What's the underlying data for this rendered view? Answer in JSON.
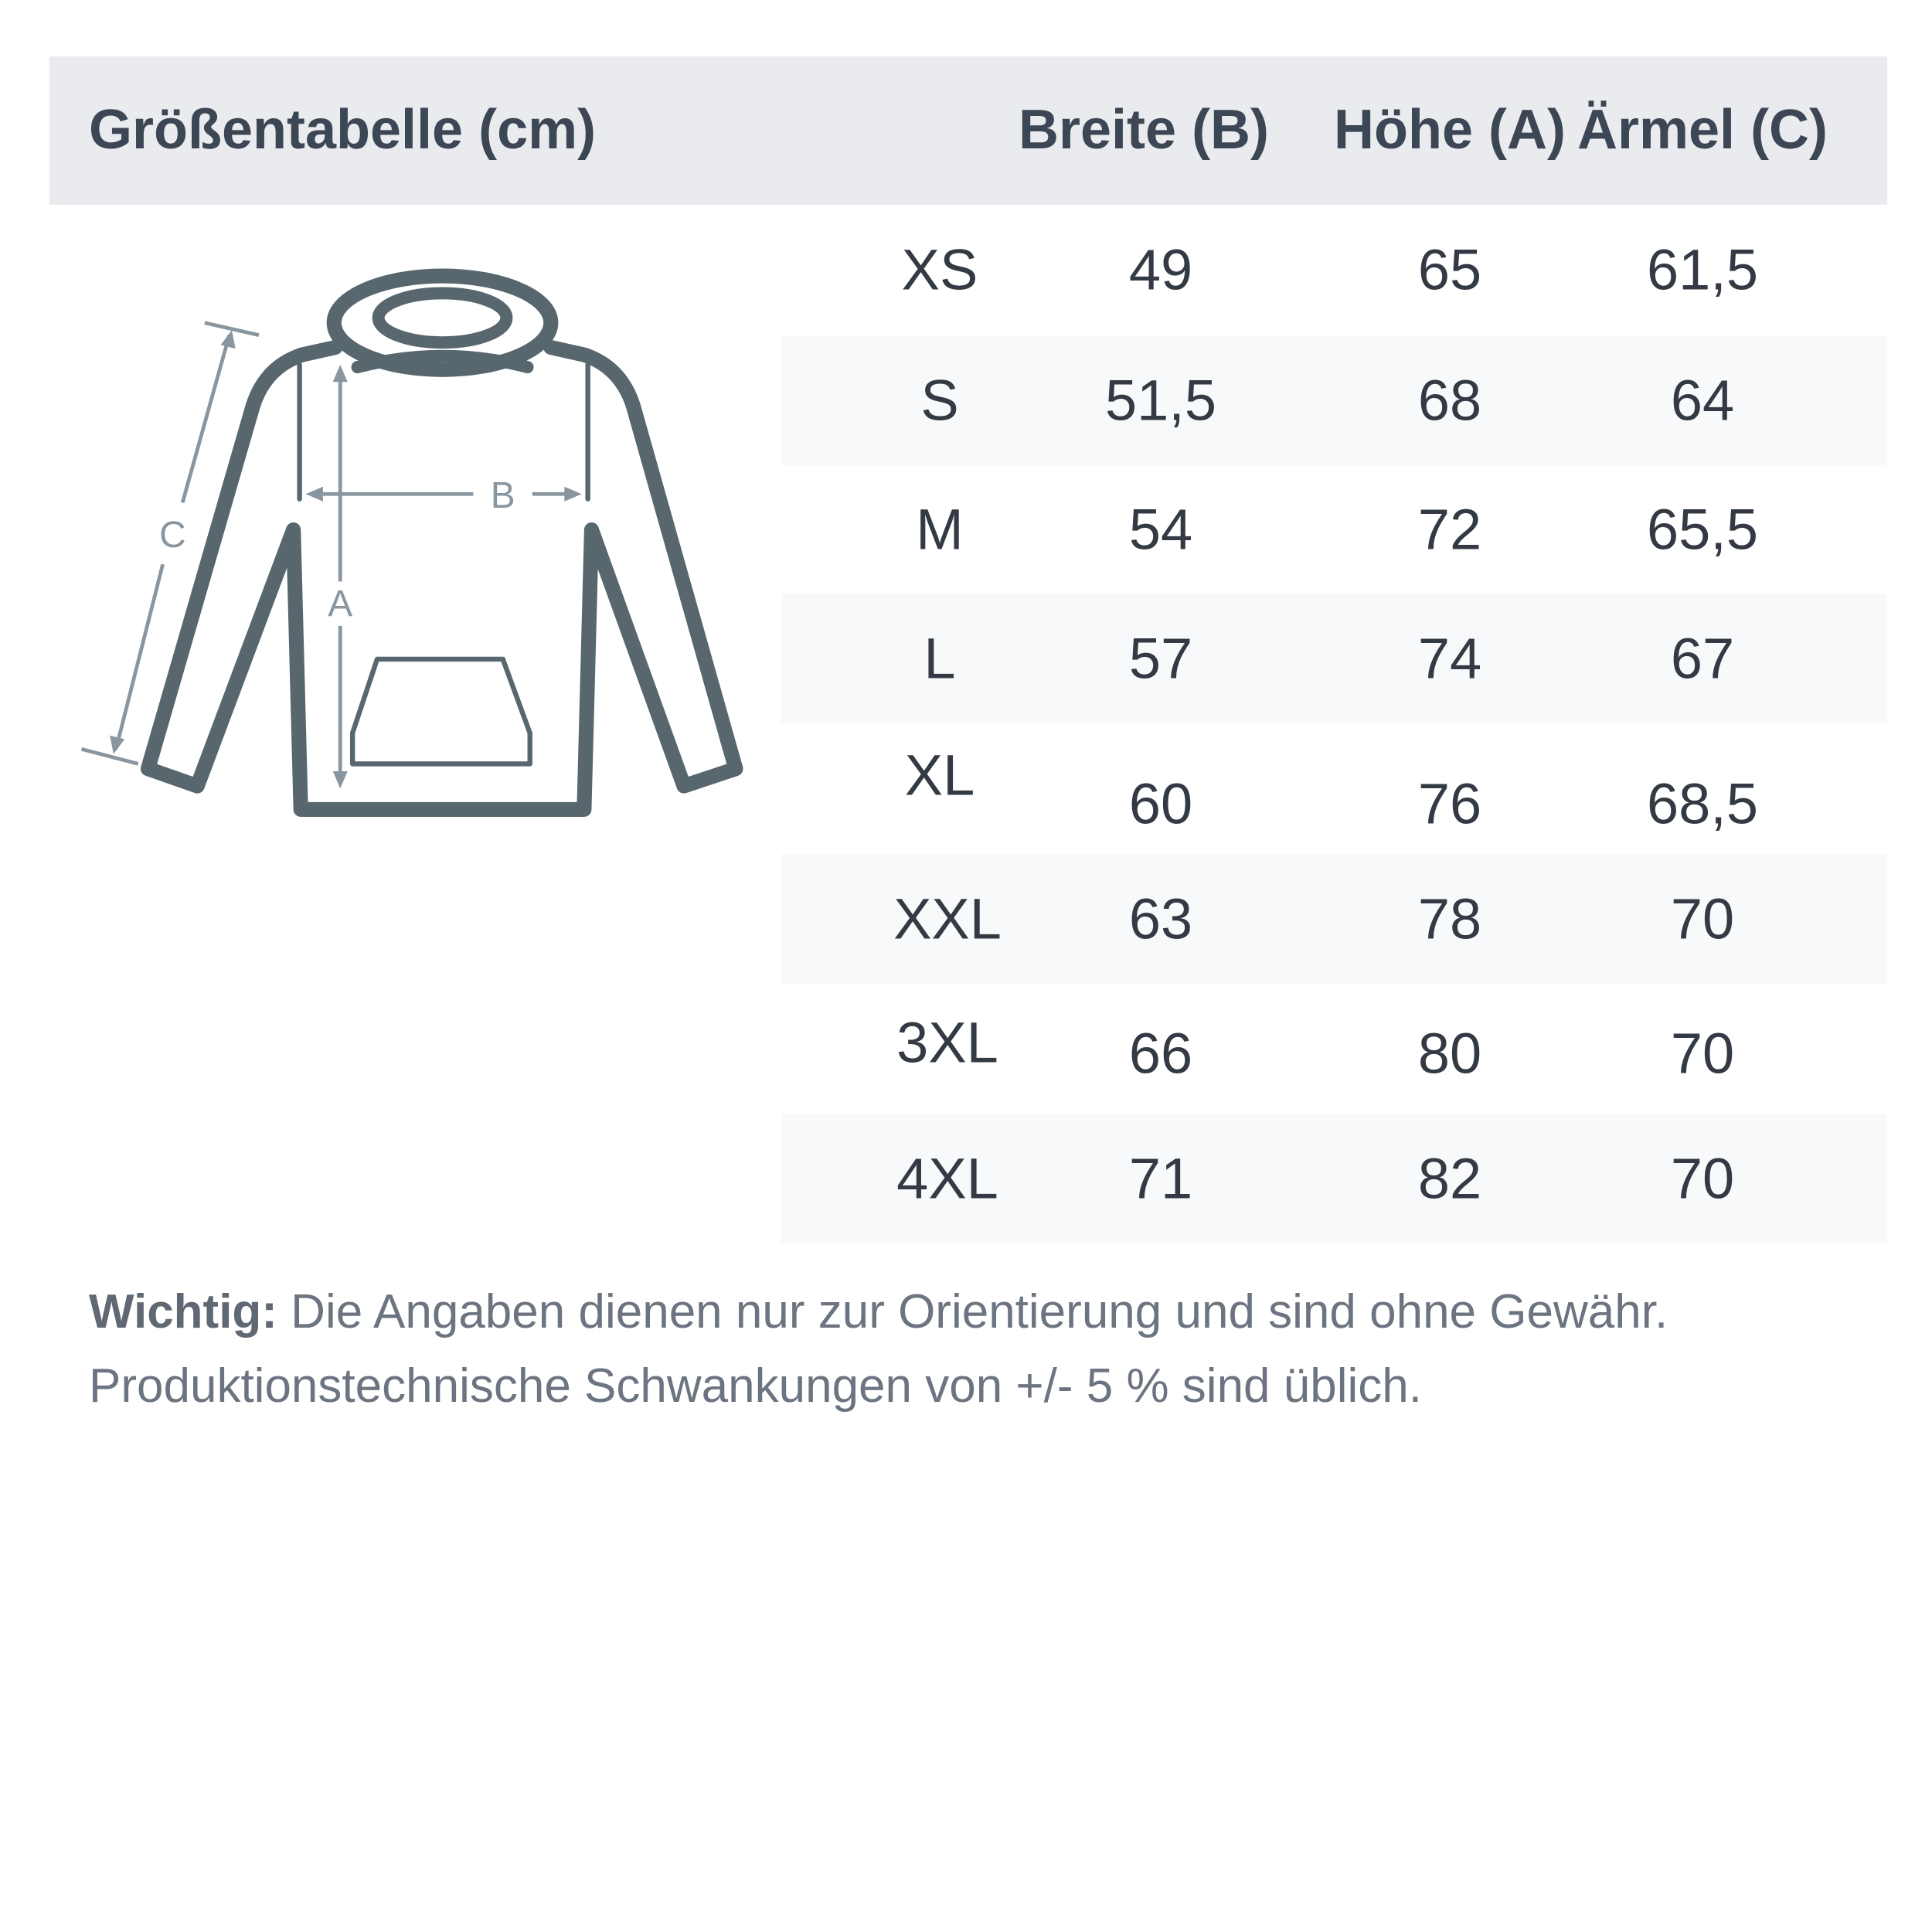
{
  "header": {
    "title": "Größentabelle (cm)",
    "columns": [
      "Breite (B)",
      "Höhe (A)",
      "Ärmel (C)"
    ]
  },
  "diagram": {
    "labels": {
      "a": "A",
      "b": "B",
      "c": "C"
    }
  },
  "table": {
    "rows": [
      {
        "size": "XS",
        "breite": "49",
        "hoehe": "65",
        "aermel": "61,5"
      },
      {
        "size": "S",
        "breite": "51,5",
        "hoehe": "68",
        "aermel": "64"
      },
      {
        "size": "M",
        "breite": "54",
        "hoehe": "72",
        "aermel": "65,5"
      },
      {
        "size": "L",
        "breite": "57",
        "hoehe": "74",
        "aermel": "67"
      },
      {
        "size": "XL",
        "breite": "60",
        "hoehe": "76",
        "aermel": "68,5"
      },
      {
        "size": "XXL",
        "breite": "63",
        "hoehe": "78",
        "aermel": "70"
      },
      {
        "size": "3XL",
        "breite": "66",
        "hoehe": "80",
        "aermel": "70"
      },
      {
        "size": "4XL",
        "breite": "71",
        "hoehe": "82",
        "aermel": "70"
      }
    ]
  },
  "note": {
    "label": "Wichtig:",
    "line1": " Die Angaben dienen nur zur Orientierung und sind ohne Gewähr.",
    "line2": "Produktionstechnische Schwankungen von +/- 5 % sind üblich."
  },
  "colors": {
    "header_bg": "#e9ebef",
    "stripe": "#f8f9fb",
    "garment": "#58666e",
    "measure": "#8996a0"
  }
}
